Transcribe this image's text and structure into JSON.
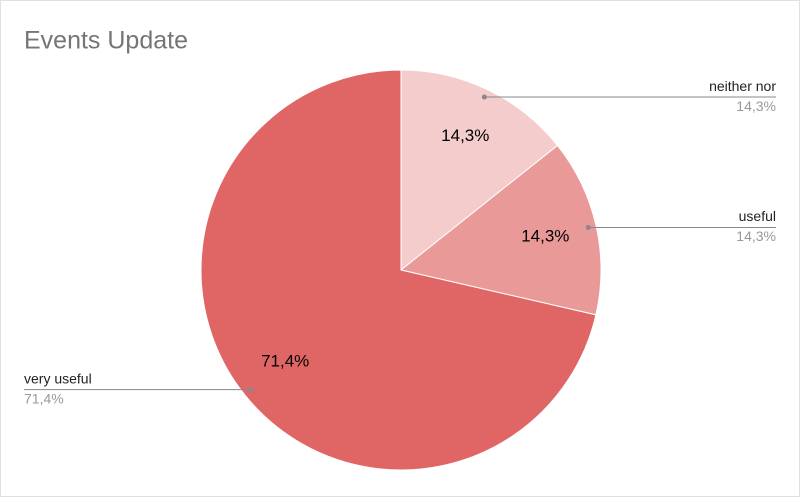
{
  "chart_data": {
    "type": "pie",
    "title": "Events Update",
    "categories": [
      "neither nor",
      "useful",
      "very useful"
    ],
    "values": [
      14.3,
      14.3,
      71.4
    ],
    "value_labels": [
      "14,3%",
      "14,3%",
      "71,4%"
    ],
    "colors": [
      "#f4cccc",
      "#ea9999",
      "#e06666"
    ]
  }
}
